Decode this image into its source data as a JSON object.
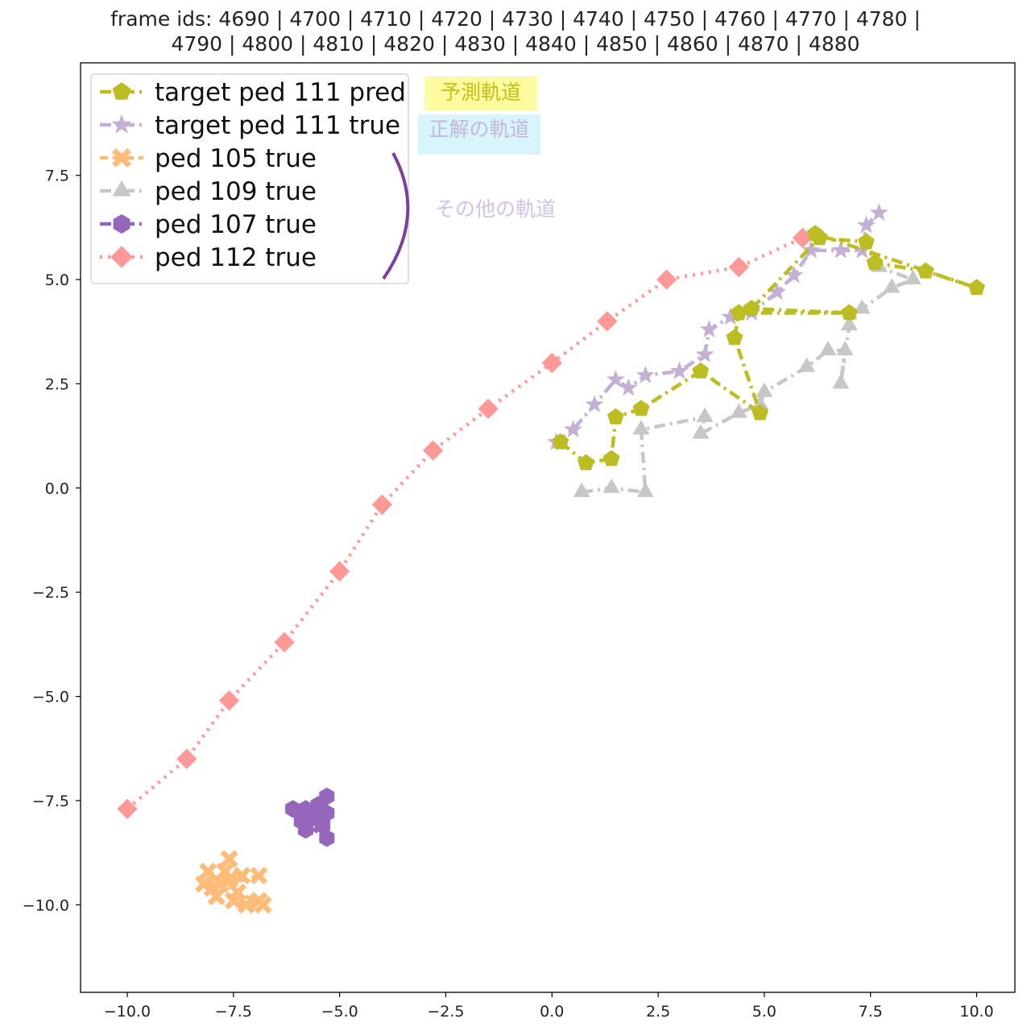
{
  "chart_data": {
    "type": "line",
    "title": "frame ids: 4690 | 4700 | 4710 | 4720 | 4730 | 4740 | 4750 | 4760 | 4770 | 4780 |\n4790 | 4800 | 4810 | 4820 | 4830 | 4840 | 4850 | 4860 | 4870 | 4880",
    "title_lines": [
      "frame ids: 4690 | 4700 | 4710 | 4720 | 4730 | 4740 | 4750 | 4760 | 4770 | 4780 |",
      "4790 | 4800 | 4810 | 4820 | 4830 | 4840 | 4850 | 4860 | 4870 | 4880"
    ],
    "xlabel": "",
    "ylabel": "",
    "xlim": [
      -11.1,
      10.9
    ],
    "ylim": [
      -12.1,
      10.2
    ],
    "xticks": [
      -10.0,
      -7.5,
      -5.0,
      -2.5,
      0.0,
      2.5,
      5.0,
      7.5,
      10.0
    ],
    "xtick_labels": [
      "−10.0",
      "−7.5",
      "−5.0",
      "−2.5",
      "0.0",
      "2.5",
      "5.0",
      "7.5",
      "10.0"
    ],
    "yticks": [
      7.5,
      5.0,
      2.5,
      0.0,
      -2.5,
      -5.0,
      -7.5,
      -10.0
    ],
    "ytick_labels": [
      "7.5",
      "5.0",
      "2.5",
      "0.0",
      "−2.5",
      "−5.0",
      "−7.5",
      "−10.0"
    ],
    "grid": false,
    "legend_position": "top-left",
    "series": [
      {
        "name": "target ped 111 pred",
        "color": "#bcbd22",
        "marker": "pentagon",
        "linestyle": "dashdot",
        "x": [
          0.2,
          0.8,
          1.4,
          1.5,
          2.1,
          3.5,
          4.9,
          4.3,
          4.4,
          7.0,
          4.7,
          6.3,
          7.4,
          7.6,
          8.8,
          10.0,
          6.2
        ],
        "y": [
          1.1,
          0.6,
          0.7,
          1.7,
          1.9,
          2.8,
          1.8,
          3.6,
          4.2,
          4.2,
          4.3,
          6.0,
          5.9,
          5.4,
          5.2,
          4.8,
          6.1
        ]
      },
      {
        "name": "target ped 111 true",
        "color": "#c5b0d5",
        "marker": "star",
        "linestyle": "dashdot",
        "x": [
          0.1,
          0.5,
          1.0,
          1.5,
          1.8,
          2.2,
          3.0,
          3.6,
          3.7,
          4.2,
          4.7,
          5.3,
          5.7,
          6.1,
          6.8,
          7.3,
          7.4,
          7.7
        ],
        "y": [
          1.1,
          1.4,
          2.0,
          2.6,
          2.4,
          2.7,
          2.8,
          3.2,
          3.8,
          4.1,
          4.2,
          4.7,
          5.1,
          5.7,
          5.7,
          5.7,
          6.3,
          6.6
        ]
      },
      {
        "name": "ped 105 true",
        "color": "#ffbb78",
        "marker": "x",
        "linestyle": "dashed",
        "x": [
          -7.6,
          -7.3,
          -7.8,
          -8.2,
          -7.9,
          -8.1,
          -7.6,
          -7.5,
          -7.2,
          -6.9,
          -6.8,
          -7.4,
          -7.7,
          -8.0,
          -6.9
        ],
        "y": [
          -8.9,
          -9.3,
          -9.5,
          -9.5,
          -9.8,
          -9.2,
          -9.4,
          -9.9,
          -10.0,
          -9.9,
          -10.0,
          -9.7,
          -9.2,
          -9.6,
          -9.3
        ]
      },
      {
        "name": "ped 109 true",
        "color": "#c7c7c7",
        "marker": "triangle",
        "linestyle": "dashdot",
        "x": [
          0.7,
          1.4,
          2.2,
          2.1,
          3.6,
          3.5,
          4.4,
          4.9,
          5.0,
          6.0,
          6.5,
          6.9,
          6.8,
          7.0,
          7.3,
          8.0,
          8.5,
          7.7
        ],
        "y": [
          -0.1,
          0.0,
          -0.1,
          1.4,
          1.7,
          1.3,
          1.8,
          2.0,
          2.3,
          2.9,
          3.3,
          3.3,
          2.5,
          3.9,
          4.3,
          4.8,
          5.0,
          5.3
        ]
      },
      {
        "name": "ped 107 true",
        "color": "#9467bd",
        "marker": "hexagon",
        "linestyle": "dashdot",
        "x": [
          -5.3,
          -5.5,
          -5.3,
          -5.6,
          -5.4,
          -5.8,
          -6.1,
          -5.9,
          -5.3,
          -5.6,
          -5.8,
          -5.4
        ],
        "y": [
          -7.4,
          -7.6,
          -7.8,
          -7.8,
          -8.1,
          -8.2,
          -7.7,
          -8.0,
          -8.4,
          -7.9,
          -7.7,
          -8.0
        ]
      },
      {
        "name": "ped 112 true",
        "color": "#ff9896",
        "marker": "diamond",
        "linestyle": "dotted",
        "x": [
          -10.0,
          -8.6,
          -7.6,
          -6.3,
          -5.0,
          -4.0,
          -2.8,
          -1.5,
          0.0,
          1.3,
          2.7,
          4.4,
          5.9
        ],
        "y": [
          -7.7,
          -6.5,
          -5.1,
          -3.7,
          -2.0,
          -0.4,
          0.9,
          1.9,
          3.0,
          4.0,
          5.0,
          5.3,
          6.0
        ]
      }
    ]
  },
  "annotations": {
    "pred_label": "予測軌道",
    "true_label": "正解の軌道",
    "other_label": "その他の軌道",
    "pred_bg": "#fdfba0",
    "true_bg": "#d8f5fb",
    "bracket_color": "#7b3fa0"
  }
}
